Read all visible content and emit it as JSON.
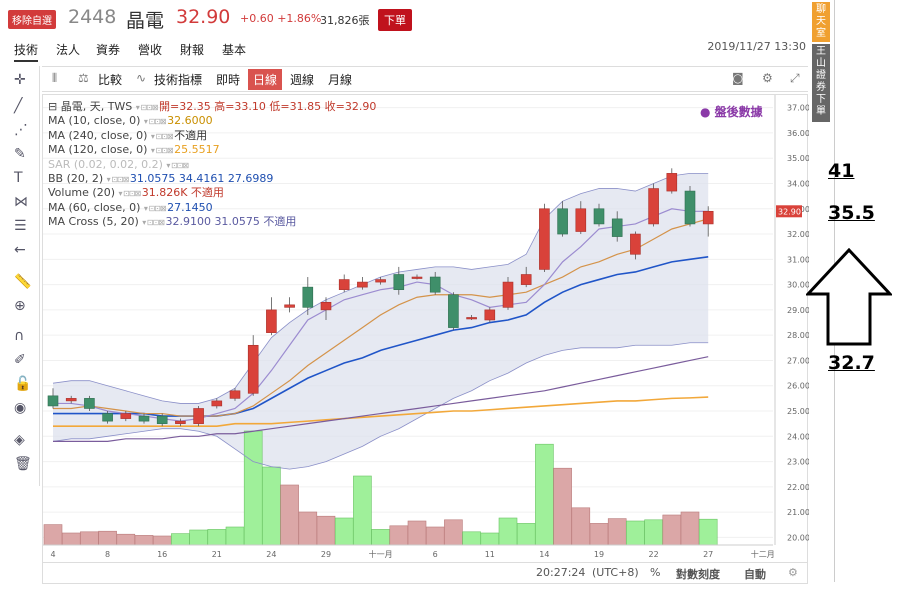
{
  "header": {
    "badge": "移除自選",
    "code": "2448",
    "name": "晶電",
    "price": "32.90",
    "change": "+0.60  +1.86%",
    "volume": "31,826張",
    "sell": "下單",
    "datetime": "2019/11/27 13:30"
  },
  "tabs": [
    "技術",
    "法人",
    "資券",
    "營收",
    "財報",
    "基本"
  ],
  "toolbar": {
    "compare": "比較",
    "indicators": "技術指標",
    "realtime": "即時",
    "daily": "日線",
    "weekly": "週線",
    "monthly": "月線"
  },
  "legend": [
    {
      "t": "晶電, 天, TWS",
      "v": "開=32.35  高=33.10  低=31.85  收=32.90",
      "c": "#c0392b"
    },
    {
      "t": "MA (10, close, 0)",
      "v": "32.6000",
      "c": "#c98f00"
    },
    {
      "t": "MA (240, close, 0)",
      "v": "不適用",
      "c": "#333"
    },
    {
      "t": "MA (120, close, 0)",
      "v": "25.5517",
      "c": "#e8a020"
    },
    {
      "t": "SAR (0.02, 0.02, 0.2)",
      "v": "",
      "c": "#bbb",
      "dim": true
    },
    {
      "t": "BB (20, 2)",
      "v": "31.0575  34.4161  27.6989",
      "c": "#1f4fb0"
    },
    {
      "t": "Volume (20)",
      "v": "31.826K  不適用",
      "c": "#c0392b"
    },
    {
      "t": "MA (60, close, 0)",
      "v": "27.1450",
      "c": "#1f4fb0"
    },
    {
      "t": "MA Cross (5, 20)",
      "v": "32.9100  31.0575  不適用",
      "c": "#5a5aa0"
    }
  ],
  "after_hours": "盤後數據",
  "status": {
    "time": "20:27:24",
    "tz": "(UTC+8)",
    "pct": "%",
    "log": "對數刻度",
    "auto": "自動"
  },
  "right_panel": {
    "chat": "聊天室",
    "broker": "王山證券下單"
  },
  "annotations": {
    "a1": "41",
    "a2": "35.5",
    "a3": "32.7"
  },
  "chart_data": {
    "type": "candlestick",
    "ylim": [
      19.7,
      37.5
    ],
    "y_ticks": [
      20,
      21,
      22,
      23,
      24,
      25,
      26,
      27,
      28,
      29,
      30,
      31,
      32,
      33,
      34,
      35,
      36,
      37
    ],
    "x_tick_labels": [
      {
        "i": 0,
        "t": "4"
      },
      {
        "i": 3,
        "t": "8"
      },
      {
        "i": 6,
        "t": "16"
      },
      {
        "i": 9,
        "t": "21"
      },
      {
        "i": 12,
        "t": "24"
      },
      {
        "i": 15,
        "t": "29"
      },
      {
        "i": 18,
        "t": "十一月"
      },
      {
        "i": 21,
        "t": "6"
      },
      {
        "i": 24,
        "t": "11"
      },
      {
        "i": 27,
        "t": "14"
      },
      {
        "i": 30,
        "t": "19"
      },
      {
        "i": 33,
        "t": "22"
      },
      {
        "i": 36,
        "t": "27"
      },
      {
        "i": 39,
        "t": "十二月"
      }
    ],
    "last_price": "32.90",
    "candles": [
      [
        25.6,
        25.2,
        25.9,
        25.1
      ],
      [
        25.4,
        25.5,
        25.6,
        25.3
      ],
      [
        25.5,
        25.1,
        25.6,
        25.0
      ],
      [
        24.9,
        24.6,
        25.0,
        24.5
      ],
      [
        24.7,
        24.9,
        25.0,
        24.6
      ],
      [
        24.8,
        24.6,
        24.9,
        24.5
      ],
      [
        24.8,
        24.5,
        24.9,
        24.4
      ],
      [
        24.5,
        24.6,
        24.7,
        24.4
      ],
      [
        24.5,
        25.1,
        25.2,
        24.4
      ],
      [
        25.2,
        25.4,
        25.5,
        25.1
      ],
      [
        25.5,
        25.8,
        25.9,
        25.4
      ],
      [
        25.7,
        27.6,
        28.0,
        25.6
      ],
      [
        28.1,
        29.0,
        29.5,
        28.0
      ],
      [
        29.1,
        29.2,
        29.5,
        28.9
      ],
      [
        29.9,
        29.1,
        30.3,
        28.8
      ],
      [
        29.0,
        29.3,
        29.5,
        28.6
      ],
      [
        29.8,
        30.2,
        30.4,
        29.7
      ],
      [
        29.9,
        30.1,
        30.3,
        29.8
      ],
      [
        30.1,
        30.2,
        30.3,
        30.0
      ],
      [
        30.4,
        29.8,
        30.7,
        29.6
      ],
      [
        30.3,
        30.3,
        30.4,
        30.2
      ],
      [
        30.3,
        29.7,
        30.5,
        29.6
      ],
      [
        29.6,
        28.3,
        29.7,
        28.2
      ],
      [
        28.7,
        28.7,
        28.8,
        28.6
      ],
      [
        28.6,
        29.0,
        29.1,
        28.5
      ],
      [
        29.1,
        30.1,
        30.3,
        29.0
      ],
      [
        30.0,
        30.4,
        30.7,
        29.9
      ],
      [
        30.6,
        33.0,
        33.2,
        30.5
      ],
      [
        33.0,
        32.0,
        33.3,
        31.9
      ],
      [
        32.1,
        33.0,
        33.3,
        32.0
      ],
      [
        33.0,
        32.4,
        33.2,
        32.3
      ],
      [
        32.6,
        31.9,
        32.9,
        31.7
      ],
      [
        31.2,
        32.0,
        32.1,
        31.0
      ],
      [
        32.4,
        33.8,
        34.0,
        32.3
      ],
      [
        33.7,
        34.4,
        34.6,
        33.6
      ],
      [
        33.7,
        32.4,
        33.9,
        32.3
      ],
      [
        32.4,
        32.9,
        33.1,
        31.9
      ]
    ],
    "volume": [
      3.4,
      2.0,
      2.2,
      2.3,
      1.8,
      1.6,
      1.5,
      1.9,
      2.5,
      2.6,
      3.0,
      19.0,
      13.0,
      10.0,
      5.5,
      4.8,
      4.5,
      11.5,
      2.6,
      3.2,
      4.0,
      3.0,
      4.2,
      2.2,
      2.0,
      4.5,
      3.6,
      16.8,
      12.8,
      6.2,
      3.6,
      4.4,
      4.0,
      4.2,
      5.0,
      5.5,
      4.3
    ],
    "volume_up": [
      false,
      false,
      false,
      false,
      false,
      false,
      false,
      true,
      true,
      true,
      true,
      true,
      true,
      false,
      false,
      false,
      true,
      true,
      true,
      false,
      false,
      false,
      false,
      true,
      true,
      true,
      true,
      true,
      false,
      false,
      false,
      false,
      true,
      true,
      false,
      false,
      true
    ],
    "bb_upper": [
      26.1,
      26.2,
      26.2,
      26.0,
      25.8,
      25.6,
      25.4,
      25.3,
      25.3,
      25.5,
      25.9,
      26.9,
      27.9,
      28.5,
      29.0,
      29.4,
      29.7,
      30.0,
      30.3,
      30.5,
      30.6,
      30.7,
      30.7,
      30.6,
      30.7,
      30.8,
      31.2,
      32.6,
      33.3,
      33.6,
      33.8,
      33.8,
      33.7,
      34.0,
      34.3,
      34.4,
      34.4
    ],
    "bb_lower": [
      23.8,
      23.9,
      23.9,
      24.0,
      24.1,
      24.2,
      24.3,
      24.3,
      24.2,
      24.0,
      23.5,
      23.0,
      22.8,
      22.7,
      22.8,
      23.0,
      23.3,
      23.6,
      24.0,
      24.3,
      24.7,
      25.1,
      25.5,
      25.8,
      26.2,
      26.5,
      26.9,
      27.2,
      27.4,
      27.5,
      27.5,
      27.5,
      27.6,
      27.6,
      27.6,
      27.7,
      27.7
    ],
    "bb_mid": [
      24.9,
      24.9,
      24.9,
      24.9,
      24.9,
      24.9,
      24.8,
      24.8,
      24.8,
      24.8,
      24.9,
      25.1,
      25.5,
      25.9,
      26.3,
      26.6,
      26.9,
      27.1,
      27.4,
      27.6,
      27.8,
      28.0,
      28.2,
      28.3,
      28.5,
      28.6,
      28.8,
      29.3,
      29.7,
      30.0,
      30.2,
      30.4,
      30.5,
      30.7,
      30.9,
      31.0,
      31.1
    ],
    "ma_cross_fast": [
      25.3,
      25.3,
      25.2,
      25.0,
      24.9,
      24.8,
      24.7,
      24.6,
      24.7,
      24.9,
      25.1,
      25.7,
      26.6,
      27.6,
      28.6,
      29.0,
      29.4,
      29.6,
      29.8,
      29.9,
      30.1,
      30.0,
      29.6,
      29.4,
      29.1,
      29.2,
      29.3,
      30.0,
      30.9,
      31.5,
      32.2,
      32.3,
      32.4,
      32.7,
      33.0,
      32.9,
      32.9
    ],
    "ma10": [
      25.1,
      25.1,
      25.2,
      25.1,
      25.0,
      24.9,
      24.9,
      24.8,
      24.8,
      24.8,
      24.9,
      25.2,
      25.7,
      26.2,
      26.8,
      27.3,
      27.8,
      28.3,
      28.8,
      29.2,
      29.5,
      29.6,
      29.6,
      29.6,
      29.5,
      29.6,
      29.7,
      30.0,
      30.3,
      30.7,
      30.9,
      31.2,
      31.4,
      31.8,
      32.2,
      32.4,
      32.6
    ],
    "ma60": [
      23.8,
      23.8,
      23.8,
      23.8,
      23.9,
      23.9,
      23.9,
      24.0,
      24.0,
      24.1,
      24.1,
      24.2,
      24.3,
      24.4,
      24.5,
      24.6,
      24.7,
      24.8,
      24.9,
      25.0,
      25.1,
      25.2,
      25.3,
      25.4,
      25.5,
      25.6,
      25.7,
      25.8,
      25.95,
      26.1,
      26.25,
      26.4,
      26.55,
      26.7,
      26.85,
      27.0,
      27.15
    ],
    "ma120": [
      24.4,
      24.4,
      24.4,
      24.4,
      24.4,
      24.4,
      24.4,
      24.4,
      24.4,
      24.4,
      24.5,
      24.5,
      24.5,
      24.55,
      24.6,
      24.65,
      24.7,
      24.75,
      24.8,
      24.85,
      24.9,
      24.95,
      25.0,
      25.0,
      25.05,
      25.1,
      25.15,
      25.2,
      25.25,
      25.3,
      25.35,
      25.4,
      25.4,
      25.45,
      25.5,
      25.52,
      25.55
    ]
  }
}
